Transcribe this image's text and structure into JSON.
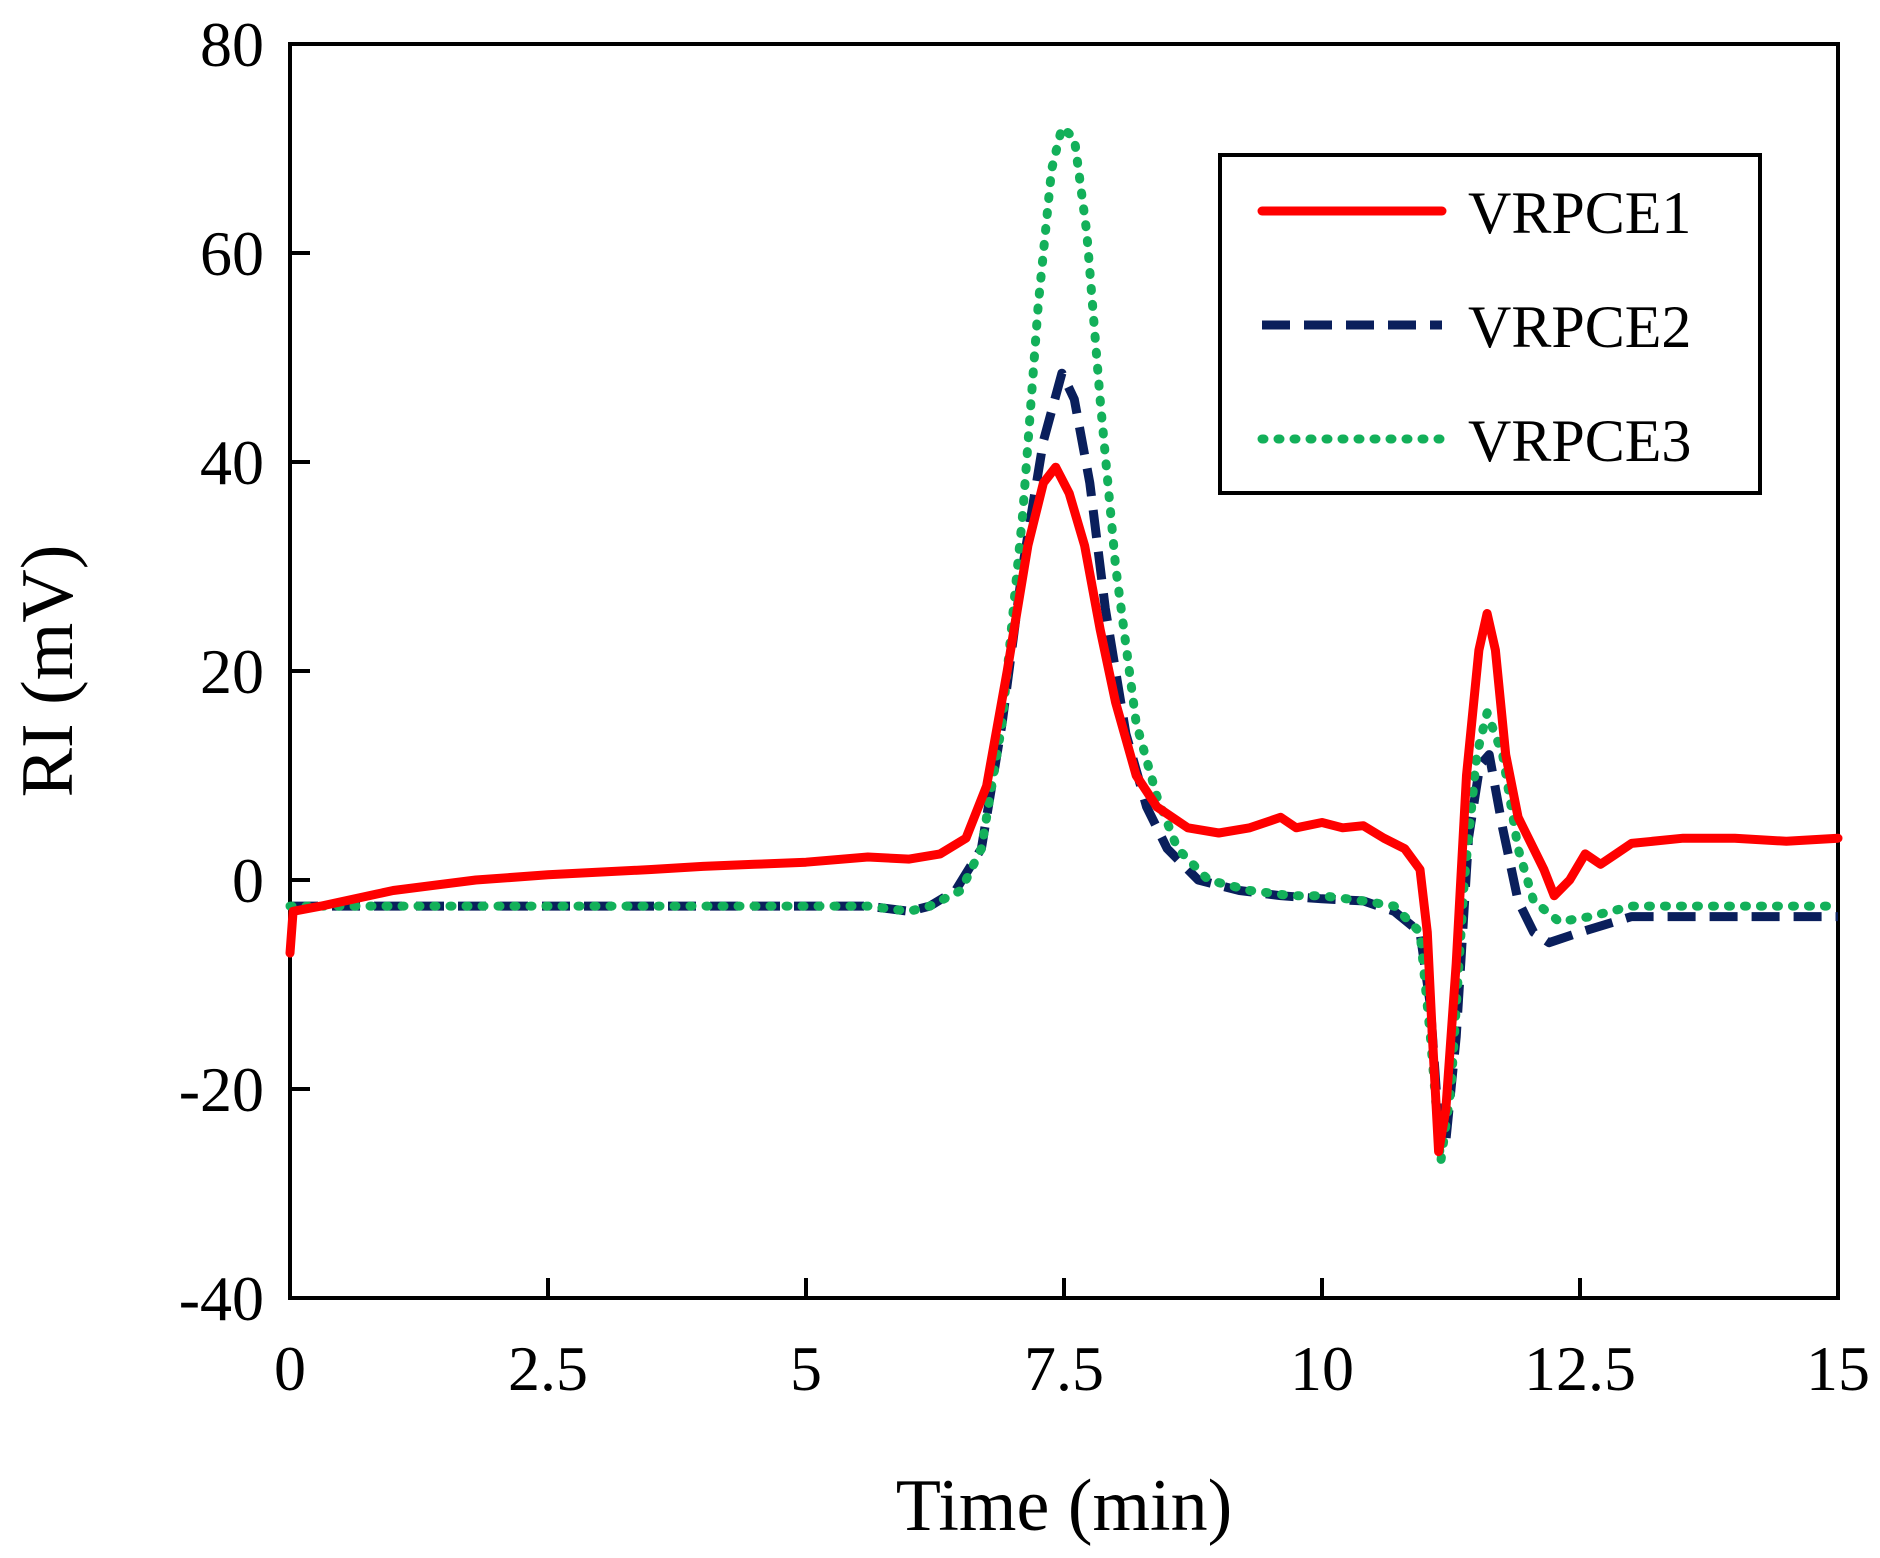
{
  "chart_data": {
    "type": "line",
    "title": "",
    "xlabel": "Time (min)",
    "ylabel": "RI (mV)",
    "xlim": [
      0,
      15
    ],
    "ylim": [
      -40,
      80
    ],
    "xticks": [
      0,
      2.5,
      5,
      7.5,
      10,
      12.5,
      15
    ],
    "xtick_labels": [
      "0",
      "2.5",
      "5",
      "7.5",
      "10",
      "12.5",
      "15"
    ],
    "yticks": [
      80,
      60,
      40,
      20,
      0,
      -20,
      -40
    ],
    "ytick_labels": [
      "80",
      "60",
      "40",
      "20",
      "0",
      "-20",
      "-40"
    ],
    "grid": false,
    "legend_position": "top-right",
    "series": [
      {
        "name": "VRPCE1",
        "color": "#ff0000",
        "style": "solid",
        "points": [
          [
            0,
            -7
          ],
          [
            0.03,
            -3
          ],
          [
            0.3,
            -2.5
          ],
          [
            1,
            -1
          ],
          [
            1.8,
            0
          ],
          [
            2.5,
            0.5
          ],
          [
            3.5,
            1
          ],
          [
            4,
            1.3
          ],
          [
            4.5,
            1.5
          ],
          [
            5,
            1.7
          ],
          [
            5.6,
            2.2
          ],
          [
            6,
            2
          ],
          [
            6.3,
            2.5
          ],
          [
            6.55,
            4
          ],
          [
            6.75,
            9
          ],
          [
            6.95,
            20
          ],
          [
            7.15,
            32
          ],
          [
            7.3,
            38
          ],
          [
            7.42,
            39.5
          ],
          [
            7.55,
            37
          ],
          [
            7.7,
            32
          ],
          [
            7.85,
            24
          ],
          [
            8,
            17
          ],
          [
            8.2,
            10
          ],
          [
            8.4,
            7
          ],
          [
            8.7,
            5
          ],
          [
            9,
            4.5
          ],
          [
            9.3,
            5
          ],
          [
            9.6,
            6
          ],
          [
            9.75,
            5
          ],
          [
            10,
            5.5
          ],
          [
            10.2,
            5
          ],
          [
            10.4,
            5.2
          ],
          [
            10.6,
            4
          ],
          [
            10.8,
            3
          ],
          [
            10.95,
            1
          ],
          [
            11.02,
            -5
          ],
          [
            11.07,
            -15
          ],
          [
            11.13,
            -26
          ],
          [
            11.2,
            -22
          ],
          [
            11.3,
            -8
          ],
          [
            11.4,
            10
          ],
          [
            11.52,
            22
          ],
          [
            11.6,
            25.5
          ],
          [
            11.68,
            22
          ],
          [
            11.78,
            12
          ],
          [
            11.9,
            6
          ],
          [
            12.05,
            3
          ],
          [
            12.15,
            1
          ],
          [
            12.25,
            -1.5
          ],
          [
            12.4,
            0
          ],
          [
            12.55,
            2.5
          ],
          [
            12.7,
            1.5
          ],
          [
            12.85,
            2.5
          ],
          [
            13,
            3.5
          ],
          [
            13.5,
            4
          ],
          [
            14,
            4
          ],
          [
            14.5,
            3.7
          ],
          [
            15,
            4
          ]
        ]
      },
      {
        "name": "VRPCE2",
        "color": "#0a1f5c",
        "style": "dashed",
        "points": [
          [
            0,
            -2.5
          ],
          [
            1,
            -2.5
          ],
          [
            2,
            -2.5
          ],
          [
            3,
            -2.5
          ],
          [
            4,
            -2.5
          ],
          [
            5,
            -2.5
          ],
          [
            5.6,
            -2.5
          ],
          [
            6,
            -3
          ],
          [
            6.2,
            -2.5
          ],
          [
            6.45,
            -1
          ],
          [
            6.7,
            3
          ],
          [
            6.9,
            15
          ],
          [
            7.1,
            30
          ],
          [
            7.3,
            42
          ],
          [
            7.48,
            48.5
          ],
          [
            7.6,
            46
          ],
          [
            7.75,
            38
          ],
          [
            7.9,
            26
          ],
          [
            8.1,
            14
          ],
          [
            8.3,
            7
          ],
          [
            8.5,
            3
          ],
          [
            8.8,
            0
          ],
          [
            9.2,
            -1
          ],
          [
            9.6,
            -1.5
          ],
          [
            10,
            -1.8
          ],
          [
            10.4,
            -2
          ],
          [
            10.7,
            -3
          ],
          [
            10.95,
            -5
          ],
          [
            11.05,
            -12
          ],
          [
            11.12,
            -22
          ],
          [
            11.2,
            -25
          ],
          [
            11.3,
            -15
          ],
          [
            11.42,
            4
          ],
          [
            11.53,
            11
          ],
          [
            11.62,
            12
          ],
          [
            11.75,
            5
          ],
          [
            11.9,
            -2
          ],
          [
            12.05,
            -5
          ],
          [
            12.2,
            -6
          ],
          [
            12.5,
            -5
          ],
          [
            13,
            -3.5
          ],
          [
            14,
            -3.5
          ],
          [
            15,
            -3.5
          ]
        ]
      },
      {
        "name": "VRPCE3",
        "color": "#13b05a",
        "style": "dotted",
        "points": [
          [
            0,
            -2.5
          ],
          [
            1,
            -2.5
          ],
          [
            2,
            -2.5
          ],
          [
            3,
            -2.5
          ],
          [
            4,
            -2.5
          ],
          [
            5,
            -2.5
          ],
          [
            5.6,
            -2.5
          ],
          [
            6,
            -3
          ],
          [
            6.2,
            -2.5
          ],
          [
            6.5,
            -1
          ],
          [
            6.7,
            3
          ],
          [
            6.9,
            15
          ],
          [
            7.1,
            35
          ],
          [
            7.25,
            55
          ],
          [
            7.38,
            68
          ],
          [
            7.48,
            72
          ],
          [
            7.6,
            71
          ],
          [
            7.72,
            62
          ],
          [
            7.85,
            46
          ],
          [
            8,
            30
          ],
          [
            8.2,
            15
          ],
          [
            8.4,
            8
          ],
          [
            8.6,
            3
          ],
          [
            8.9,
            0
          ],
          [
            9.3,
            -1
          ],
          [
            9.7,
            -1.5
          ],
          [
            10,
            -1.5
          ],
          [
            10.4,
            -2
          ],
          [
            10.7,
            -2.5
          ],
          [
            10.95,
            -5
          ],
          [
            11.05,
            -15
          ],
          [
            11.15,
            -27
          ],
          [
            11.25,
            -20
          ],
          [
            11.38,
            0
          ],
          [
            11.5,
            12
          ],
          [
            11.6,
            16
          ],
          [
            11.75,
            12
          ],
          [
            11.9,
            3
          ],
          [
            12.05,
            -2
          ],
          [
            12.3,
            -4
          ],
          [
            12.6,
            -3.5
          ],
          [
            13,
            -2.5
          ],
          [
            14,
            -2.5
          ],
          [
            15,
            -2.5
          ]
        ]
      }
    ]
  }
}
